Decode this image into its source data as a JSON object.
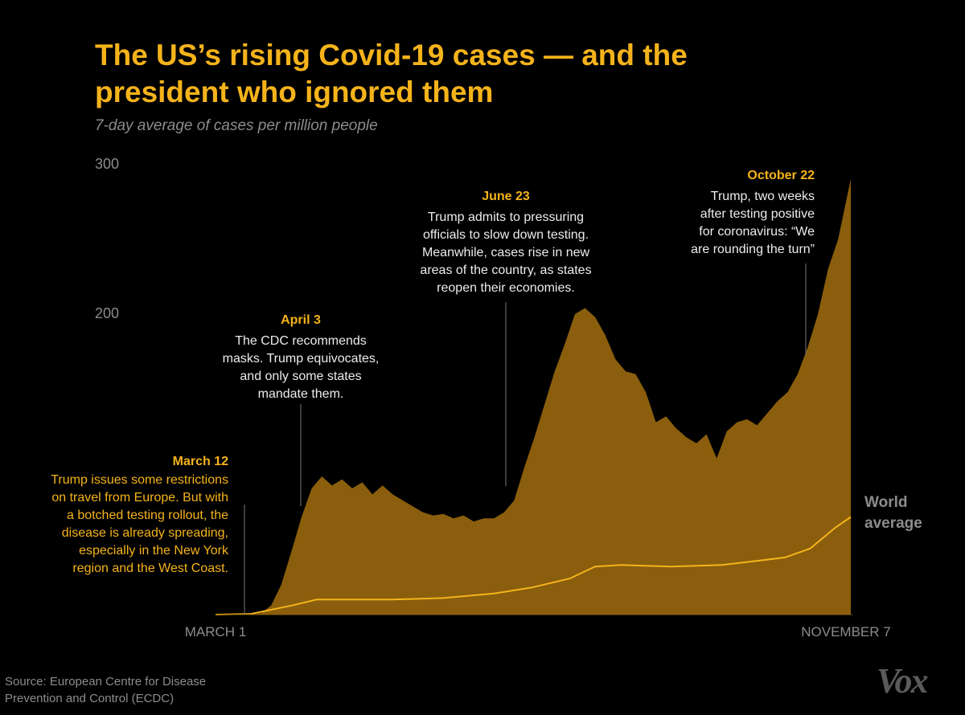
{
  "chart_data": {
    "type": "area",
    "title": "The US’s rising Covid-19 cases — and the president who ignored them",
    "subtitle": "7-day average of cases per million people",
    "ylim": [
      0,
      300
    ],
    "y_ticks": [
      "300",
      "200"
    ],
    "x_start_label": "MARCH 1",
    "x_end_label": "NOVEMBER 7",
    "series": [
      {
        "name": "US",
        "color": "#8a5e0c",
        "x_days": [
          0,
          14,
          18,
          22,
          26,
          30,
          34,
          38,
          42,
          46,
          50,
          54,
          58,
          62,
          66,
          70,
          74,
          78,
          82,
          86,
          90,
          94,
          98,
          102,
          106,
          110,
          114,
          118,
          122,
          126,
          130,
          134,
          138,
          142,
          146,
          150,
          154,
          158,
          162,
          166,
          170,
          174,
          178,
          182,
          186,
          190,
          194,
          198,
          202,
          206,
          210,
          214,
          218,
          222,
          226,
          230,
          234,
          238,
          242,
          246,
          251
        ],
        "values": [
          0,
          0,
          1,
          6,
          20,
          42,
          65,
          84,
          92,
          86,
          90,
          84,
          88,
          80,
          86,
          80,
          76,
          72,
          68,
          66,
          67,
          64,
          66,
          62,
          64,
          64,
          68,
          76,
          98,
          118,
          140,
          162,
          180,
          200,
          204,
          198,
          186,
          170,
          162,
          160,
          148,
          128,
          132,
          124,
          118,
          114,
          120,
          104,
          122,
          128,
          130,
          126,
          134,
          142,
          148,
          160,
          178,
          200,
          230,
          250,
          290
        ]
      },
      {
        "name": "World average",
        "color": "#f5b31b",
        "x_days": [
          0,
          14,
          30,
          40,
          50,
          70,
          90,
          110,
          125,
          140,
          150,
          160,
          180,
          200,
          215,
          225,
          235,
          245,
          251
        ],
        "values": [
          0,
          0.5,
          6,
          10,
          10,
          10,
          11,
          14,
          18,
          24,
          32,
          33,
          32,
          33,
          36,
          38,
          44,
          58,
          65
        ]
      }
    ],
    "annotations": [
      {
        "date": "March 12",
        "text": [
          "Trump issues some restrictions",
          "on travel from Europe. But with",
          "a botched testing rollout, the",
          "disease is already spreading,",
          "especially in the New York",
          "region and the West Coast."
        ]
      },
      {
        "date": "April 3",
        "text": [
          "The CDC recommends",
          "masks. Trump equivocates,",
          "and only some states",
          "mandate them."
        ]
      },
      {
        "date": "June 23",
        "text": [
          "Trump admits to pressuring",
          "officials to slow down testing.",
          "Meanwhile, cases rise in new",
          "areas of the country, as states",
          "reopen their economies."
        ]
      },
      {
        "date": "October 22",
        "text": [
          "Trump, two weeks",
          "after testing positive",
          "for coronavirus: “We",
          "are rounding the turn”"
        ]
      }
    ],
    "world_label": [
      "World",
      "average"
    ]
  },
  "source": [
    "Source:  European Centre for Disease",
    "Prevention and Control (ECDC)"
  ],
  "logo": "Vox",
  "colors": {
    "accent": "#f5b31b",
    "area": "#8a5e0c",
    "muted": "#8c8c8c"
  }
}
